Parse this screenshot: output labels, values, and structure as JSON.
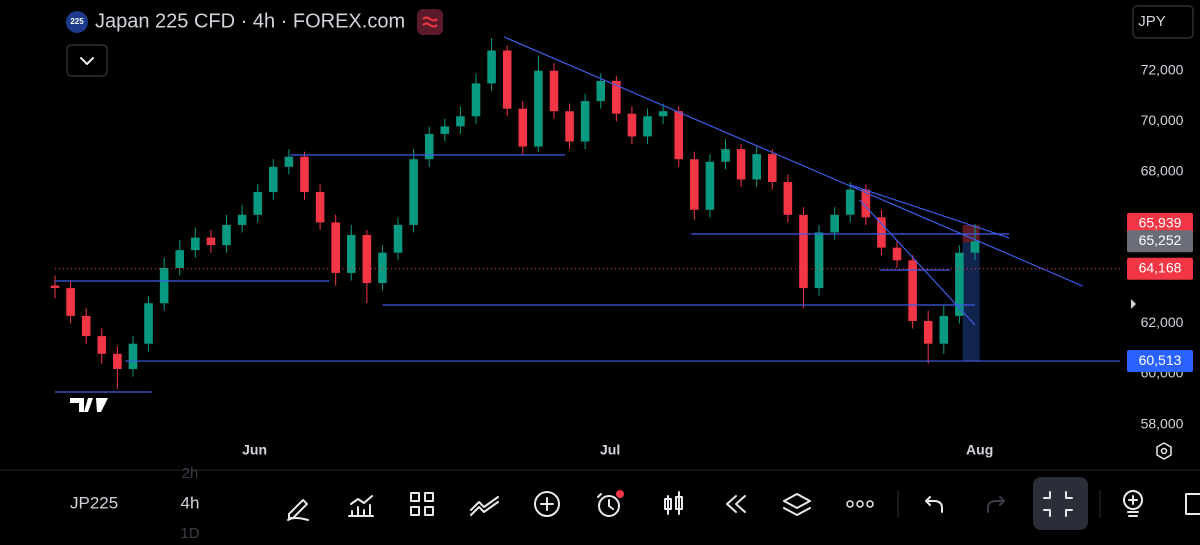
{
  "header": {
    "badge": "225",
    "currency": "JPY"
  },
  "toolbar": {
    "symbol": "JP225",
    "intervals": [
      "2h",
      "4h",
      "1D"
    ]
  },
  "chart_data": {
    "type": "candlestick",
    "title": "Japan 225 CFD · 4h · FOREX.com",
    "up_color": "#089981",
    "down_color": "#f23645",
    "drawing_color": "#3d5ee8",
    "xlim": [
      0,
      68.3
    ],
    "ylim": [
      56400,
      74800
    ],
    "xticks": [
      {
        "value": 12.8,
        "label": "Jun"
      },
      {
        "value": 35.6,
        "label": "Jul"
      },
      {
        "value": 59.3,
        "label": "Aug"
      }
    ],
    "yticks": [
      {
        "value": 58000,
        "label": "58,000"
      },
      {
        "value": 60000,
        "label": "60,000"
      },
      {
        "value": 62000,
        "label": "62,000"
      },
      {
        "value": 68000,
        "label": "68,000"
      },
      {
        "value": 70000,
        "label": "70,000"
      },
      {
        "value": 72000,
        "label": "72,000"
      }
    ],
    "open": [
      63500,
      63400,
      62300,
      61500,
      60800,
      60200,
      61200,
      62800,
      64200,
      64900,
      65400,
      65100,
      65900,
      66300,
      67200,
      68200,
      68600,
      67200,
      66000,
      64000,
      65500,
      63600,
      64800,
      65900,
      68500,
      69500,
      69800,
      70200,
      71500,
      72800,
      70500,
      69000,
      72000,
      70400,
      69200,
      70800,
      71600,
      70300,
      69400,
      70200,
      70400,
      68500,
      66500,
      68400,
      68900,
      67700,
      68700,
      67600,
      66300,
      63400,
      65600,
      66300,
      67300,
      66200,
      65000,
      64500,
      62100,
      61200,
      62300,
      64800
    ],
    "high": [
      63900,
      63700,
      62600,
      61800,
      61100,
      61500,
      63100,
      64600,
      65300,
      65800,
      65700,
      66300,
      66700,
      67500,
      68500,
      68900,
      68800,
      67500,
      66300,
      65900,
      65700,
      65100,
      66200,
      68900,
      69800,
      70100,
      70600,
      71900,
      73300,
      73000,
      70800,
      72600,
      72300,
      70700,
      71100,
      71900,
      71800,
      70600,
      70500,
      70700,
      70600,
      68800,
      68700,
      69300,
      69100,
      69000,
      68900,
      67900,
      66600,
      65900,
      66600,
      67600,
      67500,
      66500,
      65300,
      64700,
      62500,
      62700,
      65100,
      65939
    ],
    "low": [
      63000,
      62000,
      61200,
      60400,
      59400,
      59900,
      60900,
      62500,
      63900,
      64600,
      64800,
      64800,
      65600,
      66000,
      66900,
      67900,
      66900,
      65700,
      63500,
      63700,
      62800,
      63300,
      64500,
      65600,
      68200,
      69200,
      69500,
      69900,
      71200,
      70200,
      68700,
      68800,
      70100,
      68900,
      68900,
      70500,
      70000,
      69100,
      69100,
      69900,
      68200,
      66100,
      66200,
      68100,
      67400,
      67400,
      67300,
      66000,
      62600,
      63100,
      65300,
      66000,
      65900,
      64700,
      64200,
      61800,
      60400,
      60800,
      62000,
      64500
    ],
    "close": [
      63400,
      62300,
      61500,
      60800,
      60200,
      61200,
      62800,
      64200,
      64900,
      65400,
      65100,
      65900,
      66300,
      67200,
      68200,
      68600,
      67200,
      66000,
      64000,
      65500,
      63600,
      64800,
      65900,
      68500,
      69500,
      69800,
      70200,
      71500,
      72800,
      70500,
      69000,
      72000,
      70400,
      69200,
      70800,
      71600,
      70300,
      69400,
      70200,
      70400,
      68500,
      66500,
      68400,
      68900,
      67700,
      68700,
      67600,
      66300,
      63400,
      65600,
      66300,
      67300,
      66200,
      65000,
      64500,
      62100,
      61200,
      62300,
      64800,
      65252
    ],
    "drawings": [
      {
        "x": [
          28.8,
          65.9
        ],
        "y": [
          73336,
          63483
        ]
      },
      {
        "x": [
          51.0,
          61.2
        ],
        "y": [
          67480,
          65384
        ]
      },
      {
        "x": [
          51.6,
          59.0
        ],
        "y": [
          66886,
          61940
        ]
      },
      {
        "x": [
          4.5,
          68.3
        ],
        "y": [
          60513,
          60513
        ]
      },
      {
        "x": [
          0,
          17.6
        ],
        "y": [
          63681,
          63681
        ]
      },
      {
        "x": [
          21.0,
          59.0
        ],
        "y": [
          62731,
          62731
        ]
      },
      {
        "x": [
          40.8,
          61.2
        ],
        "y": [
          65540,
          65540
        ]
      },
      {
        "x": [
          15.1,
          32.7
        ],
        "y": [
          68667,
          68667
        ]
      },
      {
        "x": [
          0,
          6.2
        ],
        "y": [
          59289,
          59289
        ]
      },
      {
        "x": [
          52.9,
          57.4
        ],
        "y": [
          64116,
          64116
        ]
      }
    ],
    "zones": [
      {
        "x": [
          58.2,
          59.3
        ],
        "y": [
          65200,
          65900
        ],
        "color": "#6b1f2a"
      },
      {
        "x": [
          58.2,
          59.3
        ],
        "y": [
          60500,
          65200
        ],
        "color": "#142a5c"
      }
    ],
    "price_line": {
      "value": 64168,
      "label": "64,168",
      "color": "#f23645"
    },
    "price_labels": [
      {
        "value": 65939,
        "label": "65,939",
        "color": "#f23645"
      },
      {
        "value": 65252,
        "label": "65,252",
        "color": "#6a6d78"
      },
      {
        "value": 60513,
        "label": "60,513",
        "color": "#2962ff"
      }
    ]
  }
}
